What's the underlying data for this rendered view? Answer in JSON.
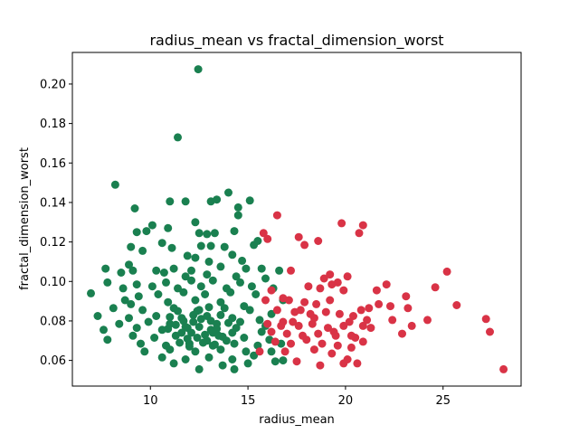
{
  "chart_data": {
    "type": "scatter",
    "title": "radius_mean vs fractal_dimension_worst",
    "xlabel": "radius_mean",
    "ylabel": "fractal_dimension_worst",
    "xlim": [
      6.0,
      29.0
    ],
    "ylim": [
      0.047,
      0.216
    ],
    "xticks": [
      10,
      15,
      20,
      25
    ],
    "yticks": [
      0.06,
      0.08,
      0.1,
      0.12,
      0.14,
      0.16,
      0.18,
      0.2
    ],
    "ytick_labels": [
      "0.06",
      "0.08",
      "0.10",
      "0.12",
      "0.14",
      "0.16",
      "0.18",
      "0.20"
    ],
    "grid": false,
    "legend": "none",
    "colors": {
      "green": "#1a8050",
      "red": "#d93346"
    },
    "series": [
      {
        "color": "#1a8050",
        "points": [
          [
            12.45,
            0.2075
          ],
          [
            11.4,
            0.173
          ],
          [
            8.2,
            0.149
          ],
          [
            13.4,
            0.1415
          ],
          [
            14.0,
            0.145
          ],
          [
            15.1,
            0.141
          ],
          [
            11.0,
            0.1405
          ],
          [
            11.8,
            0.1405
          ],
          [
            13.1,
            0.1405
          ],
          [
            9.2,
            0.137
          ],
          [
            14.5,
            0.1375
          ],
          [
            14.5,
            0.1335
          ],
          [
            10.1,
            0.1285
          ],
          [
            12.3,
            0.13
          ],
          [
            10.9,
            0.127
          ],
          [
            9.3,
            0.125
          ],
          [
            9.8,
            0.1255
          ],
          [
            12.5,
            0.1245
          ],
          [
            13.3,
            0.1245
          ],
          [
            12.9,
            0.124
          ],
          [
            14.3,
            0.1255
          ],
          [
            15.5,
            0.1205
          ],
          [
            9.0,
            0.1175
          ],
          [
            10.6,
            0.1195
          ],
          [
            11.1,
            0.117
          ],
          [
            12.6,
            0.118
          ],
          [
            13.1,
            0.118
          ],
          [
            13.8,
            0.1175
          ],
          [
            15.3,
            0.1185
          ],
          [
            9.6,
            0.1155
          ],
          [
            14.2,
            0.1135
          ],
          [
            11.9,
            0.113
          ],
          [
            12.3,
            0.112
          ],
          [
            13.0,
            0.11
          ],
          [
            14.7,
            0.1105
          ],
          [
            8.9,
            0.1085
          ],
          [
            7.7,
            0.1065
          ],
          [
            8.5,
            0.1045
          ],
          [
            10.3,
            0.1055
          ],
          [
            11.2,
            0.1065
          ],
          [
            12.1,
            0.1055
          ],
          [
            13.6,
            0.1075
          ],
          [
            14.9,
            0.1065
          ],
          [
            15.7,
            0.1065
          ],
          [
            16.6,
            0.1055
          ],
          [
            9.1,
            0.1055
          ],
          [
            10.7,
            0.1045
          ],
          [
            11.8,
            0.1025
          ],
          [
            12.9,
            0.1035
          ],
          [
            14.4,
            0.1025
          ],
          [
            7.8,
            0.0995
          ],
          [
            9.3,
            0.0985
          ],
          [
            10.8,
            0.0995
          ],
          [
            12.1,
            0.1005
          ],
          [
            13.2,
            0.1005
          ],
          [
            14.6,
            0.0995
          ],
          [
            15.9,
            0.1015
          ],
          [
            8.6,
            0.0965
          ],
          [
            10.1,
            0.0975
          ],
          [
            11.4,
            0.0965
          ],
          [
            12.6,
            0.0975
          ],
          [
            13.9,
            0.0965
          ],
          [
            15.2,
            0.0975
          ],
          [
            16.3,
            0.0965
          ],
          [
            6.95,
            0.094
          ],
          [
            8.7,
            0.0905
          ],
          [
            9.4,
            0.0925
          ],
          [
            10.4,
            0.0935
          ],
          [
            11.7,
            0.0945
          ],
          [
            12.8,
            0.0935
          ],
          [
            14.1,
            0.0945
          ],
          [
            15.4,
            0.0935
          ],
          [
            16.8,
            0.0905
          ],
          [
            9.0,
            0.0885
          ],
          [
            10.9,
            0.0895
          ],
          [
            12.3,
            0.0905
          ],
          [
            13.6,
            0.0895
          ],
          [
            14.8,
            0.0875
          ],
          [
            8.1,
            0.0865
          ],
          [
            9.6,
            0.0855
          ],
          [
            11.2,
            0.0865
          ],
          [
            12.5,
            0.0855
          ],
          [
            13.8,
            0.0865
          ],
          [
            15.1,
            0.0855
          ],
          [
            16.2,
            0.0835
          ],
          [
            7.3,
            0.0825
          ],
          [
            8.9,
            0.0815
          ],
          [
            10.3,
            0.0825
          ],
          [
            11.6,
            0.0815
          ],
          [
            12.9,
            0.0825
          ],
          [
            14.2,
            0.0815
          ],
          [
            15.6,
            0.0805
          ],
          [
            8.4,
            0.0785
          ],
          [
            9.9,
            0.0795
          ],
          [
            11.0,
            0.0785
          ],
          [
            12.2,
            0.0795
          ],
          [
            13.4,
            0.0785
          ],
          [
            14.6,
            0.0795
          ],
          [
            15.9,
            0.0775
          ],
          [
            7.6,
            0.0755
          ],
          [
            9.3,
            0.0765
          ],
          [
            10.6,
            0.0755
          ],
          [
            11.9,
            0.0765
          ],
          [
            13.1,
            0.0755
          ],
          [
            14.4,
            0.0765
          ],
          [
            15.7,
            0.0745
          ],
          [
            7.8,
            0.0705
          ],
          [
            9.1,
            0.0725
          ],
          [
            10.2,
            0.0715
          ],
          [
            11.3,
            0.0725
          ],
          [
            12.4,
            0.0715
          ],
          [
            13.5,
            0.0725
          ],
          [
            14.8,
            0.0715
          ],
          [
            16.1,
            0.0705
          ],
          [
            9.5,
            0.0685
          ],
          [
            10.8,
            0.0675
          ],
          [
            12.0,
            0.0685
          ],
          [
            13.2,
            0.0675
          ],
          [
            14.3,
            0.0685
          ],
          [
            15.5,
            0.0675
          ],
          [
            16.7,
            0.0685
          ],
          [
            9.7,
            0.0645
          ],
          [
            11.0,
            0.0655
          ],
          [
            12.3,
            0.0645
          ],
          [
            13.6,
            0.0655
          ],
          [
            14.9,
            0.0645
          ],
          [
            16.2,
            0.0645
          ],
          [
            10.6,
            0.0615
          ],
          [
            11.8,
            0.0605
          ],
          [
            13.0,
            0.0615
          ],
          [
            14.2,
            0.0605
          ],
          [
            15.3,
            0.0625
          ],
          [
            16.4,
            0.0595
          ],
          [
            16.8,
            0.06
          ],
          [
            12.5,
            0.0555
          ],
          [
            14.3,
            0.0555
          ],
          [
            11.2,
            0.0585
          ],
          [
            13.7,
            0.0575
          ],
          [
            15.0,
            0.0585
          ],
          [
            11.0,
            0.082
          ],
          [
            11.3,
            0.078
          ],
          [
            11.6,
            0.074
          ],
          [
            11.9,
            0.071
          ],
          [
            12.2,
            0.083
          ],
          [
            12.5,
            0.077
          ],
          [
            12.8,
            0.073
          ],
          [
            13.1,
            0.08
          ],
          [
            13.4,
            0.076
          ],
          [
            13.7,
            0.072
          ],
          [
            14.0,
            0.079
          ],
          [
            11.5,
            0.069
          ],
          [
            12.0,
            0.067
          ],
          [
            12.7,
            0.069
          ],
          [
            13.3,
            0.068
          ],
          [
            10.9,
            0.076
          ],
          [
            11.7,
            0.08
          ],
          [
            12.4,
            0.085
          ],
          [
            13.0,
            0.087
          ],
          [
            13.6,
            0.083
          ],
          [
            12.1,
            0.074
          ],
          [
            12.9,
            0.07
          ],
          [
            11.4,
            0.085
          ],
          [
            14.2,
            0.074
          ],
          [
            13.9,
            0.07
          ],
          [
            12.6,
            0.081
          ],
          [
            11.8,
            0.077
          ],
          [
            13.2,
            0.074
          ]
        ]
      },
      {
        "color": "#d93346",
        "points": [
          [
            28.1,
            0.0555
          ],
          [
            27.4,
            0.0745
          ],
          [
            27.2,
            0.081
          ],
          [
            25.7,
            0.088
          ],
          [
            25.2,
            0.105
          ],
          [
            24.6,
            0.097
          ],
          [
            24.2,
            0.0805
          ],
          [
            23.4,
            0.0775
          ],
          [
            23.2,
            0.0865
          ],
          [
            23.1,
            0.0925
          ],
          [
            22.9,
            0.0735
          ],
          [
            22.3,
            0.0875
          ],
          [
            22.1,
            0.0985
          ],
          [
            21.6,
            0.0955
          ],
          [
            21.7,
            0.0885
          ],
          [
            21.2,
            0.0865
          ],
          [
            21.1,
            0.0805
          ],
          [
            20.9,
            0.0775
          ],
          [
            20.5,
            0.0715
          ],
          [
            20.3,
            0.0665
          ],
          [
            20.9,
            0.0695
          ],
          [
            19.6,
            0.0995
          ],
          [
            19.9,
            0.0955
          ],
          [
            20.1,
            0.1025
          ],
          [
            20.9,
            0.1285
          ],
          [
            20.7,
            0.1245
          ],
          [
            19.8,
            0.1295
          ],
          [
            18.6,
            0.1205
          ],
          [
            17.6,
            0.1225
          ],
          [
            16.5,
            0.1335
          ],
          [
            17.9,
            0.1185
          ],
          [
            17.2,
            0.1055
          ],
          [
            18.1,
            0.0975
          ],
          [
            18.7,
            0.0965
          ],
          [
            19.3,
            0.0985
          ],
          [
            17.1,
            0.0905
          ],
          [
            17.9,
            0.0895
          ],
          [
            18.5,
            0.0885
          ],
          [
            19.2,
            0.0905
          ],
          [
            16.5,
            0.0855
          ],
          [
            17.4,
            0.0845
          ],
          [
            18.2,
            0.0835
          ],
          [
            19.0,
            0.0845
          ],
          [
            19.7,
            0.0835
          ],
          [
            20.4,
            0.0825
          ],
          [
            16.0,
            0.0785
          ],
          [
            16.8,
            0.0795
          ],
          [
            17.6,
            0.0775
          ],
          [
            18.3,
            0.0785
          ],
          [
            19.1,
            0.0765
          ],
          [
            19.9,
            0.0775
          ],
          [
            16.2,
            0.0745
          ],
          [
            17.0,
            0.0735
          ],
          [
            17.8,
            0.0725
          ],
          [
            18.6,
            0.0735
          ],
          [
            19.4,
            0.0745
          ],
          [
            20.3,
            0.0725
          ],
          [
            16.4,
            0.0695
          ],
          [
            17.2,
            0.0685
          ],
          [
            18.0,
            0.0705
          ],
          [
            18.8,
            0.0685
          ],
          [
            19.6,
            0.0675
          ],
          [
            15.6,
            0.0645
          ],
          [
            16.9,
            0.0645
          ],
          [
            18.4,
            0.0655
          ],
          [
            19.3,
            0.0635
          ],
          [
            20.1,
            0.0605
          ],
          [
            19.9,
            0.0585
          ],
          [
            20.6,
            0.0585
          ],
          [
            18.7,
            0.0575
          ],
          [
            17.5,
            0.0595
          ],
          [
            15.8,
            0.1245
          ],
          [
            16.0,
            0.1215
          ],
          [
            16.2,
            0.0955
          ],
          [
            15.9,
            0.0905
          ],
          [
            16.8,
            0.0915
          ],
          [
            17.3,
            0.0795
          ],
          [
            18.9,
            0.1015
          ],
          [
            19.2,
            0.1035
          ],
          [
            20.8,
            0.0855
          ],
          [
            21.3,
            0.0765
          ],
          [
            22.4,
            0.0805
          ],
          [
            18.4,
            0.0815
          ],
          [
            17.7,
            0.0855
          ],
          [
            19.5,
            0.0725
          ],
          [
            20.2,
            0.0795
          ],
          [
            16.7,
            0.0775
          ]
        ]
      }
    ]
  }
}
